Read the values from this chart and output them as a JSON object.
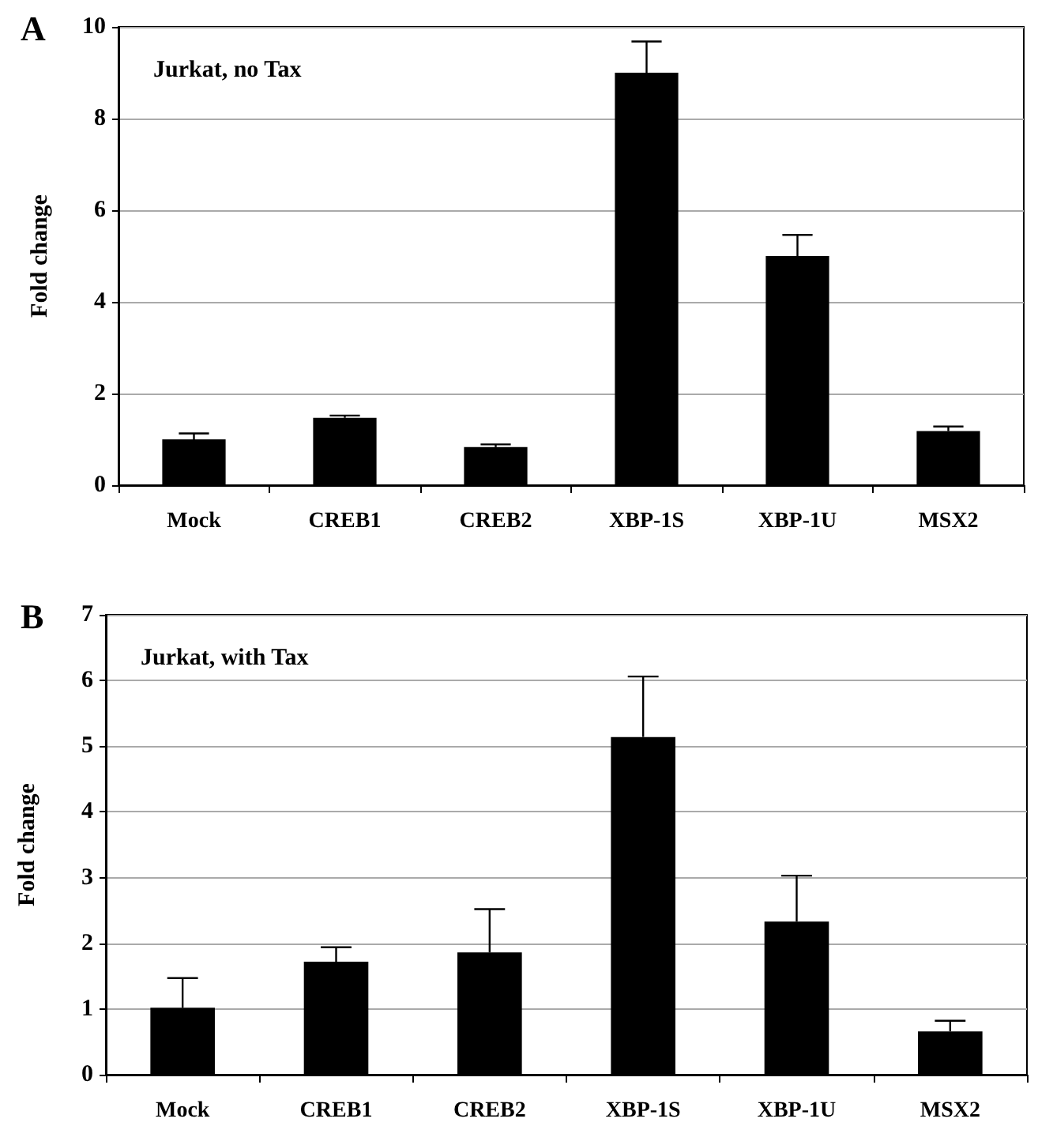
{
  "chart_data": [
    {
      "type": "bar",
      "title": "A",
      "annotations": [
        "Jurkat, no Tax"
      ],
      "ylabel": "Fold change",
      "categories": [
        "Mock",
        "CREB1",
        "CREB2",
        "XBP-1S",
        "XBP-1U",
        "MSX2"
      ],
      "values": [
        1.0,
        1.47,
        0.83,
        9.0,
        5.0,
        1.18
      ],
      "errors": [
        [
          1.0,
          1.13
        ],
        [
          1.47,
          1.52
        ],
        [
          0.83,
          0.89
        ],
        [
          9.0,
          9.68
        ],
        [
          5.0,
          5.46
        ],
        [
          1.18,
          1.28
        ]
      ],
      "color": "#000000",
      "ylim": [
        0,
        10
      ],
      "yticks": [
        0,
        2,
        4,
        6,
        8,
        10
      ],
      "grid": "y"
    },
    {
      "type": "bar",
      "title": "B",
      "annotations": [
        "Jurkat, with Tax"
      ],
      "ylabel": "Fold change",
      "categories": [
        "Mock",
        "CREB1",
        "CREB2",
        "XBP-1S",
        "XBP-1U",
        "MSX2"
      ],
      "values": [
        1.02,
        1.72,
        1.86,
        5.14,
        2.33,
        0.66
      ],
      "errors": [
        [
          1.02,
          1.47
        ],
        [
          1.72,
          1.94
        ],
        [
          1.86,
          2.52
        ],
        [
          5.14,
          6.06
        ],
        [
          2.33,
          3.03
        ],
        [
          0.66,
          0.82
        ]
      ],
      "color": "#000000",
      "ylim": [
        0,
        7
      ],
      "yticks": [
        0,
        1,
        2,
        3,
        4,
        5,
        6,
        7
      ],
      "grid": "y"
    }
  ]
}
